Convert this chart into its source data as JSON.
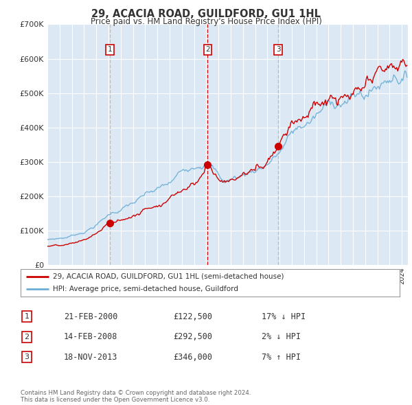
{
  "title": "29, ACACIA ROAD, GUILDFORD, GU1 1HL",
  "subtitle": "Price paid vs. HM Land Registry's House Price Index (HPI)",
  "ylim": [
    0,
    700000
  ],
  "yticks": [
    0,
    100000,
    200000,
    300000,
    400000,
    500000,
    600000,
    700000
  ],
  "ytick_labels": [
    "£0",
    "£100K",
    "£200K",
    "£300K",
    "£400K",
    "£500K",
    "£600K",
    "£700K"
  ],
  "sale_color": "#cc0000",
  "hpi_color": "#6baed6",
  "background_color": "#ffffff",
  "plot_bg_color": "#dce9f5",
  "grid_color": "#ffffff",
  "sale_dates": [
    2000.12,
    2008.12,
    2013.88
  ],
  "sale_prices": [
    122500,
    292500,
    346000
  ],
  "sale_labels": [
    "1",
    "2",
    "3"
  ],
  "vline1_color": "#bbbbbb",
  "vline2_color": "#cc0000",
  "vline3_color": "#bbbbbb",
  "legend_sale_label": "29, ACACIA ROAD, GUILDFORD, GU1 1HL (semi-detached house)",
  "legend_hpi_label": "HPI: Average price, semi-detached house, Guildford",
  "table_rows": [
    [
      "1",
      "21-FEB-2000",
      "£122,500",
      "17% ↓ HPI"
    ],
    [
      "2",
      "14-FEB-2008",
      "£292,500",
      "2% ↓ HPI"
    ],
    [
      "3",
      "18-NOV-2013",
      "£346,000",
      "7% ↑ HPI"
    ]
  ],
  "footer_text": "Contains HM Land Registry data © Crown copyright and database right 2024.\nThis data is licensed under the Open Government Licence v3.0.",
  "xmin": 1995.0,
  "xmax": 2024.5
}
